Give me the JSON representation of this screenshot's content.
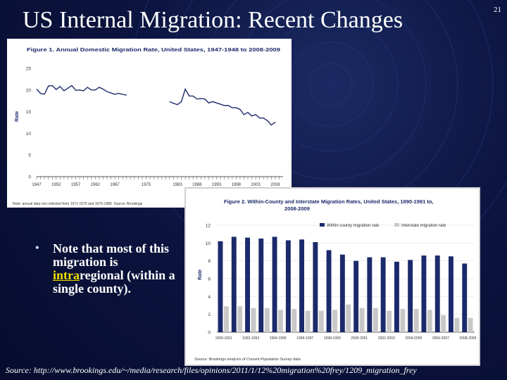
{
  "slide": {
    "title": "US Internal Migration: Recent  Changes",
    "page_number": "21",
    "bullet": {
      "prefix": "Note that most of this migration is ",
      "highlight": "intra",
      "suffix": "regional (within a single county)."
    },
    "source": "Source: http://www.brookings.edu/~/media/research/files/opinions/2011/1/12%20migration%20frey/1209_migration_frey",
    "colors": {
      "background": "#0c1440",
      "highlight": "#f2e000",
      "line": "#1b2a6b",
      "bar_within": "#1b2a6b",
      "bar_interstate": "#c8c8c8"
    }
  },
  "chart_data": [
    {
      "type": "line",
      "title": "Figure 1. Annual Domestic Migration Rate, United States, 1947-1948 to 2008-2009",
      "ylabel": "Rate",
      "ylim": [
        0,
        25
      ],
      "yticks": [
        0,
        5,
        10,
        15,
        20,
        25
      ],
      "xticks": [
        "1947",
        "1952",
        "1957",
        "1962",
        "1967",
        "1975",
        "1983",
        "1988",
        "1993",
        "1998",
        "2003",
        "2008"
      ],
      "note": "Note: annual data not collected from 1971-1975 and 1976-1980. Source: Brookings",
      "segments": [
        {
          "x": [
            1947,
            1948,
            1949,
            1950,
            1951,
            1952,
            1953,
            1954,
            1955,
            1956,
            1957,
            1958,
            1959,
            1960,
            1961,
            1962,
            1963,
            1964,
            1965,
            1966,
            1967,
            1968,
            1969,
            1970
          ],
          "y": [
            20.2,
            19.2,
            19.0,
            20.9,
            21.0,
            20.1,
            20.8,
            19.8,
            20.4,
            21.0,
            19.9,
            20.0,
            19.8,
            20.6,
            20.0,
            20.0,
            20.6,
            20.2,
            19.6,
            19.3,
            19.0,
            19.2,
            19.0,
            18.8
          ]
        },
        {
          "x": [
            1981,
            1982,
            1983,
            1984,
            1985,
            1986,
            1987,
            1988,
            1989,
            1990,
            1991,
            1992,
            1993,
            1994,
            1995,
            1996,
            1997,
            1998,
            1999,
            2000,
            2001,
            2002,
            2003,
            2004,
            2005,
            2006,
            2007,
            2008
          ],
          "y": [
            17.3,
            16.9,
            16.6,
            17.3,
            20.2,
            18.6,
            18.6,
            17.9,
            18.0,
            17.9,
            17.0,
            17.3,
            17.0,
            16.7,
            16.4,
            16.4,
            15.9,
            15.9,
            15.5,
            14.3,
            14.8,
            14.0,
            14.3,
            13.5,
            13.5,
            12.9,
            11.9,
            12.6
          ]
        }
      ]
    },
    {
      "type": "bar",
      "title": "Figure 2. Within-County and Interstate Migration Rates, United States, 1990-1991 to 2008-2009",
      "ylabel": "Rate",
      "ylim": [
        0,
        12
      ],
      "yticks": [
        0,
        2,
        4,
        6,
        8,
        10,
        12
      ],
      "categories": [
        "1990-1991",
        "1991-1992",
        "1992-1993",
        "1993-1994",
        "1994-1995",
        "1995-1996",
        "1996-1997",
        "1997-1998",
        "1998-1999",
        "1999-2000",
        "2000-2001",
        "2001-2002",
        "2002-2003",
        "2003-2004",
        "2004-2005",
        "2005-2006",
        "2006-2007",
        "2007-2008",
        "2008-2009"
      ],
      "xticks": [
        "1990-1991",
        "1992-1993",
        "1994-1995",
        "1996-1997",
        "1998-1999",
        "2000-2001",
        "2002-2003",
        "2004-2005",
        "2006-2007",
        "2008-2009"
      ],
      "series": [
        {
          "name": "Within county migration rate",
          "values": [
            10.2,
            10.7,
            10.6,
            10.5,
            10.7,
            10.3,
            10.4,
            10.1,
            9.2,
            8.7,
            8.0,
            8.4,
            8.4,
            7.9,
            8.1,
            8.6,
            8.6,
            8.5,
            7.7
          ]
        },
        {
          "name": "Interstate migration rate",
          "values": [
            2.9,
            2.9,
            2.7,
            2.7,
            2.5,
            2.6,
            2.4,
            2.4,
            2.5,
            3.1,
            2.7,
            2.7,
            2.4,
            2.6,
            2.6,
            2.5,
            1.9,
            1.6,
            1.6
          ]
        }
      ],
      "legend": "top",
      "source_note": "Source: Brookings analysis of Current Population Survey data"
    }
  ]
}
